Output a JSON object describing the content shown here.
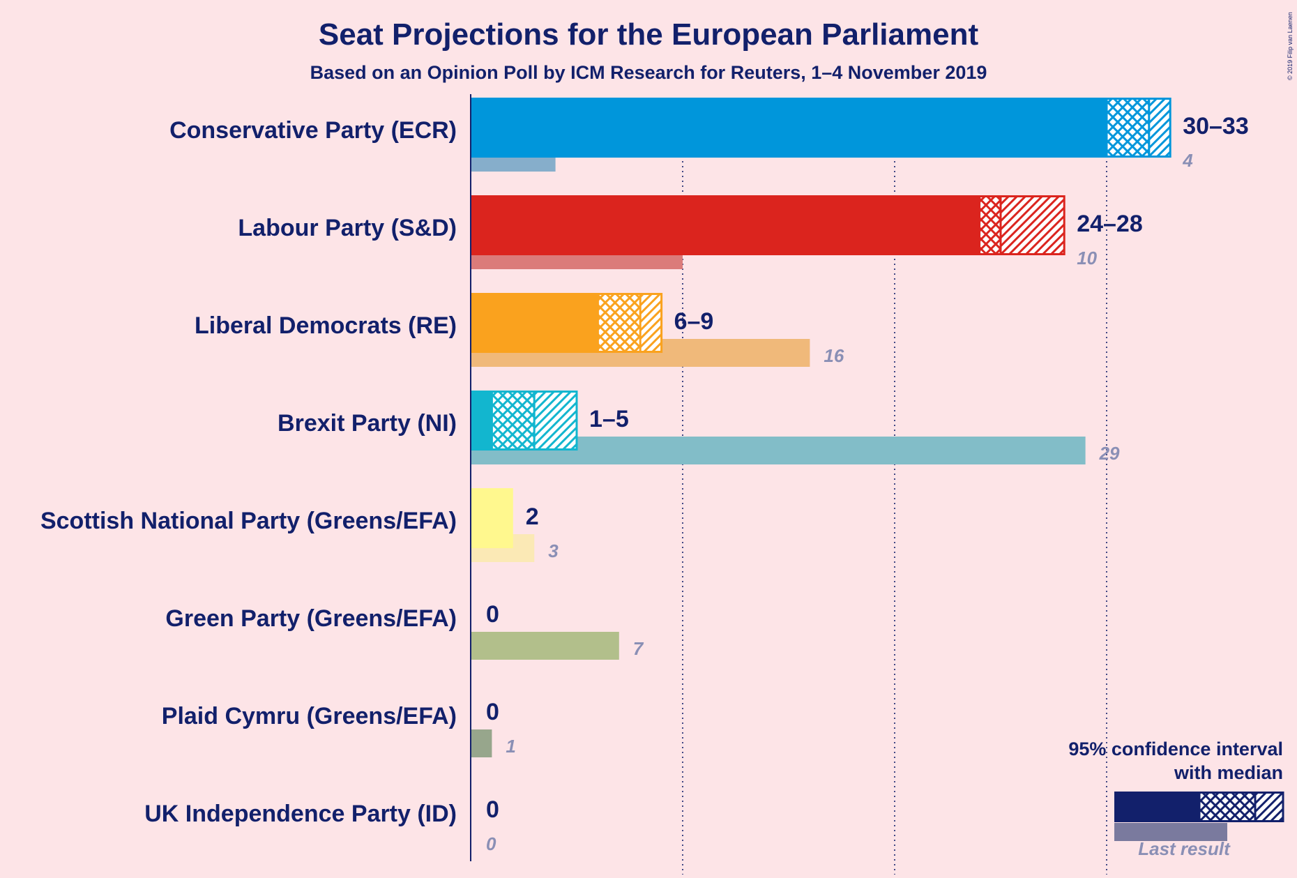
{
  "chart_data": {
    "type": "bar",
    "orientation": "horizontal",
    "title": "Seat Projections for the European Parliament",
    "subtitle": "Based on an Opinion Poll by ICM Research for Reuters, 1–4 November 2019",
    "copyright": "© 2019 Filip van Laenen",
    "xlim": [
      0,
      33
    ],
    "gridlines": [
      10,
      20,
      30
    ],
    "grid": "dotted vertical",
    "colors": {
      "title": "#12206b",
      "legend_bar": "#12206b",
      "legend_last": "#7a7a9e",
      "last_label": "#8a8fb5"
    },
    "parties": [
      {
        "name": "Conservative Party (ECR)",
        "low": 30,
        "median": 32,
        "high": 33,
        "range_label": "30–33",
        "last_result": 4,
        "last_label": "4",
        "color": "#0096db",
        "last_color": "#86aecb"
      },
      {
        "name": "Labour Party (S&D)",
        "low": 24,
        "median": 25,
        "high": 28,
        "range_label": "24–28",
        "last_result": 10,
        "last_label": "10",
        "color": "#db241e",
        "last_color": "#db7b7a"
      },
      {
        "name": "Liberal Democrats (RE)",
        "low": 6,
        "median": 8,
        "high": 9,
        "range_label": "6–9",
        "last_result": 16,
        "last_label": "16",
        "color": "#faa21e",
        "last_color": "#f0b97a"
      },
      {
        "name": "Brexit Party (NI)",
        "low": 1,
        "median": 3,
        "high": 5,
        "range_label": "1–5",
        "last_result": 29,
        "last_label": "29",
        "color": "#12b6cf",
        "last_color": "#82bdc8"
      },
      {
        "name": "Scottish National Party (Greens/EFA)",
        "low": 2,
        "median": 2,
        "high": 2,
        "range_label": "2",
        "last_result": 3,
        "last_label": "3",
        "color": "#fff88e",
        "last_color": "#fbe9b5"
      },
      {
        "name": "Green Party (Greens/EFA)",
        "low": 0,
        "median": 0,
        "high": 0,
        "range_label": "0",
        "last_result": 7,
        "last_label": "7",
        "color": "#6ab023",
        "last_color": "#b2bf8b"
      },
      {
        "name": "Plaid Cymru (Greens/EFA)",
        "low": 0,
        "median": 0,
        "high": 0,
        "range_label": "0",
        "last_result": 1,
        "last_label": "1",
        "color": "#3f8428",
        "last_color": "#97a68c"
      },
      {
        "name": "UK Independence Party (ID)",
        "low": 0,
        "median": 0,
        "high": 0,
        "range_label": "0",
        "last_result": 0,
        "last_label": "0",
        "color": "#70147a",
        "last_color": "#a07aa5"
      }
    ],
    "legend": {
      "line1": "95% confidence interval",
      "line2": "with median",
      "last_result": "Last result",
      "placement": "bottom-right"
    }
  }
}
